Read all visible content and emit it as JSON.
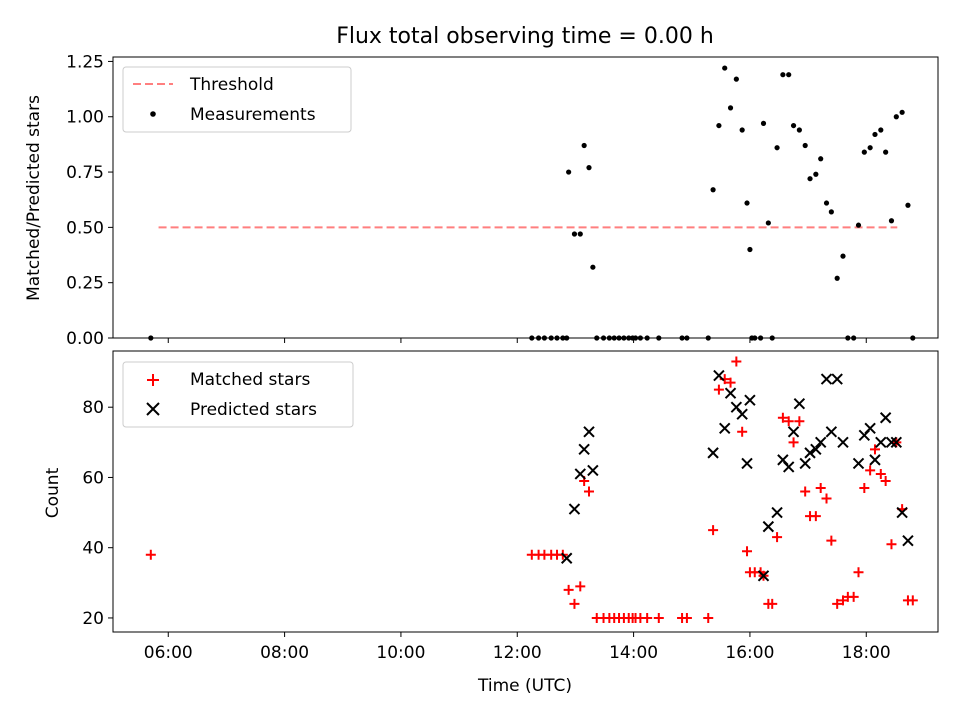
{
  "title": "Flux total observing time = 0.00 h",
  "colors": {
    "threshold": "#ff7f7f",
    "measurements": "#000000",
    "matched": "#ff0000",
    "predicted": "#000000",
    "axes": "#000000",
    "background": "#ffffff"
  },
  "chart_data": [
    {
      "type": "scatter",
      "ylabel": "Matched/Predicted stars",
      "xlabel": "",
      "xlim": [
        "05:03",
        "19:14"
      ],
      "ylim": [
        0,
        1.27
      ],
      "yticks": [
        "0.00",
        "0.25",
        "0.50",
        "0.75",
        "1.00",
        "1.25"
      ],
      "ytick_values": [
        0,
        0.25,
        0.5,
        0.75,
        1.0,
        1.25
      ],
      "legend_position": "upper left",
      "threshold": {
        "name": "Threshold",
        "value": 0.5,
        "x": [
          "05:50",
          "18:32"
        ],
        "style": "dashed"
      },
      "series": [
        {
          "name": "Measurements",
          "marker": "dot",
          "points": [
            [
              "05:42",
              0.0
            ],
            [
              "12:15",
              0.0
            ],
            [
              "12:22",
              0.0
            ],
            [
              "12:28",
              0.0
            ],
            [
              "12:35",
              0.0
            ],
            [
              "12:41",
              0.0
            ],
            [
              "12:47",
              0.0
            ],
            [
              "12:51",
              0.0
            ],
            [
              "12:53",
              0.75
            ],
            [
              "12:59",
              0.47
            ],
            [
              "13:05",
              0.47
            ],
            [
              "13:09",
              0.87
            ],
            [
              "13:14",
              0.77
            ],
            [
              "13:18",
              0.32
            ],
            [
              "13:22",
              0.0
            ],
            [
              "13:29",
              0.0
            ],
            [
              "13:35",
              0.0
            ],
            [
              "13:40",
              0.0
            ],
            [
              "13:45",
              0.0
            ],
            [
              "13:50",
              0.0
            ],
            [
              "13:55",
              0.0
            ],
            [
              "13:59",
              0.0
            ],
            [
              "14:02",
              0.0
            ],
            [
              "14:07",
              0.0
            ],
            [
              "14:14",
              0.0
            ],
            [
              "14:26",
              0.0
            ],
            [
              "14:50",
              0.0
            ],
            [
              "14:55",
              0.0
            ],
            [
              "15:17",
              0.0
            ],
            [
              "15:22",
              0.67
            ],
            [
              "15:28",
              0.96
            ],
            [
              "15:34",
              1.22
            ],
            [
              "15:40",
              1.04
            ],
            [
              "15:46",
              1.17
            ],
            [
              "15:52",
              0.94
            ],
            [
              "15:57",
              0.61
            ],
            [
              "16:00",
              0.4
            ],
            [
              "16:02",
              0.0
            ],
            [
              "16:05",
              0.0
            ],
            [
              "16:11",
              0.0
            ],
            [
              "16:14",
              0.97
            ],
            [
              "16:19",
              0.52
            ],
            [
              "16:23",
              0.0
            ],
            [
              "16:28",
              0.86
            ],
            [
              "16:34",
              1.19
            ],
            [
              "16:40",
              1.19
            ],
            [
              "16:45",
              0.96
            ],
            [
              "16:51",
              0.94
            ],
            [
              "16:57",
              0.87
            ],
            [
              "17:02",
              0.72
            ],
            [
              "17:08",
              0.74
            ],
            [
              "17:13",
              0.81
            ],
            [
              "17:19",
              0.61
            ],
            [
              "17:24",
              0.57
            ],
            [
              "17:30",
              0.27
            ],
            [
              "17:36",
              0.37
            ],
            [
              "17:41",
              0.0
            ],
            [
              "17:47",
              0.0
            ],
            [
              "17:52",
              0.51
            ],
            [
              "17:58",
              0.84
            ],
            [
              "18:04",
              0.86
            ],
            [
              "18:09",
              0.92
            ],
            [
              "18:15",
              0.94
            ],
            [
              "18:20",
              0.84
            ],
            [
              "18:26",
              0.53
            ],
            [
              "18:31",
              1.0
            ],
            [
              "18:37",
              1.02
            ],
            [
              "18:43",
              0.6
            ],
            [
              "18:48",
              0.0
            ]
          ]
        }
      ]
    },
    {
      "type": "scatter",
      "ylabel": "Count",
      "xlabel": "Time (UTC)",
      "xlim": [
        "05:03",
        "19:14"
      ],
      "ylim": [
        16,
        96
      ],
      "yticks": [
        "20",
        "40",
        "60",
        "80"
      ],
      "ytick_values": [
        20,
        40,
        60,
        80
      ],
      "xticks": [
        "06:00",
        "08:00",
        "10:00",
        "12:00",
        "14:00",
        "16:00",
        "18:00"
      ],
      "legend_position": "upper left",
      "series": [
        {
          "name": "Matched stars",
          "marker": "plus",
          "points": [
            [
              "05:42",
              38
            ],
            [
              "12:15",
              38
            ],
            [
              "12:22",
              38
            ],
            [
              "12:28",
              38
            ],
            [
              "12:35",
              38
            ],
            [
              "12:41",
              38
            ],
            [
              "12:47",
              38
            ],
            [
              "12:53",
              28
            ],
            [
              "12:59",
              24
            ],
            [
              "13:05",
              29
            ],
            [
              "13:09",
              59
            ],
            [
              "13:14",
              56
            ],
            [
              "13:22",
              20
            ],
            [
              "13:29",
              20
            ],
            [
              "13:35",
              20
            ],
            [
              "13:40",
              20
            ],
            [
              "13:45",
              20
            ],
            [
              "13:50",
              20
            ],
            [
              "13:55",
              20
            ],
            [
              "13:59",
              20
            ],
            [
              "14:02",
              20
            ],
            [
              "14:07",
              20
            ],
            [
              "14:14",
              20
            ],
            [
              "14:26",
              20
            ],
            [
              "14:50",
              20
            ],
            [
              "14:55",
              20
            ],
            [
              "15:17",
              20
            ],
            [
              "15:22",
              45
            ],
            [
              "15:28",
              85
            ],
            [
              "15:34",
              88
            ],
            [
              "15:40",
              87
            ],
            [
              "15:46",
              93
            ],
            [
              "15:52",
              73
            ],
            [
              "15:57",
              39
            ],
            [
              "16:00",
              33
            ],
            [
              "16:05",
              33
            ],
            [
              "16:11",
              33
            ],
            [
              "16:14",
              32
            ],
            [
              "16:19",
              24
            ],
            [
              "16:23",
              24
            ],
            [
              "16:28",
              43
            ],
            [
              "16:34",
              77
            ],
            [
              "16:40",
              76
            ],
            [
              "16:45",
              70
            ],
            [
              "16:51",
              76
            ],
            [
              "16:57",
              56
            ],
            [
              "17:02",
              49
            ],
            [
              "17:08",
              49
            ],
            [
              "17:13",
              57
            ],
            [
              "17:19",
              54
            ],
            [
              "17:24",
              42
            ],
            [
              "17:30",
              24
            ],
            [
              "17:36",
              25
            ],
            [
              "17:41",
              26
            ],
            [
              "17:47",
              26
            ],
            [
              "17:52",
              33
            ],
            [
              "17:58",
              57
            ],
            [
              "18:04",
              62
            ],
            [
              "18:09",
              68
            ],
            [
              "18:15",
              61
            ],
            [
              "18:20",
              59
            ],
            [
              "18:26",
              41
            ],
            [
              "18:31",
              70
            ],
            [
              "18:37",
              51
            ],
            [
              "18:43",
              25
            ],
            [
              "18:48",
              25
            ]
          ]
        },
        {
          "name": "Predicted stars",
          "marker": "x",
          "points": [
            [
              "12:51",
              37
            ],
            [
              "12:59",
              51
            ],
            [
              "13:05",
              61
            ],
            [
              "13:09",
              68
            ],
            [
              "13:14",
              73
            ],
            [
              "13:18",
              62
            ],
            [
              "15:22",
              67
            ],
            [
              "15:28",
              89
            ],
            [
              "15:34",
              74
            ],
            [
              "15:40",
              84
            ],
            [
              "15:46",
              80
            ],
            [
              "15:52",
              78
            ],
            [
              "15:57",
              64
            ],
            [
              "16:00",
              82
            ],
            [
              "16:14",
              32
            ],
            [
              "16:19",
              46
            ],
            [
              "16:28",
              50
            ],
            [
              "16:34",
              65
            ],
            [
              "16:40",
              63
            ],
            [
              "16:45",
              73
            ],
            [
              "16:51",
              81
            ],
            [
              "16:57",
              64
            ],
            [
              "17:02",
              67
            ],
            [
              "17:08",
              68
            ],
            [
              "17:13",
              70
            ],
            [
              "17:19",
              88
            ],
            [
              "17:24",
              73
            ],
            [
              "17:30",
              88
            ],
            [
              "17:36",
              70
            ],
            [
              "17:52",
              64
            ],
            [
              "17:58",
              72
            ],
            [
              "18:04",
              74
            ],
            [
              "18:09",
              65
            ],
            [
              "18:15",
              70
            ],
            [
              "18:20",
              77
            ],
            [
              "18:26",
              70
            ],
            [
              "18:31",
              70
            ],
            [
              "18:37",
              50
            ],
            [
              "18:43",
              42
            ]
          ]
        }
      ]
    }
  ]
}
